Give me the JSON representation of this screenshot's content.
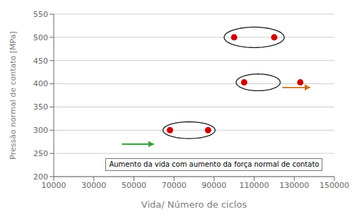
{
  "chart_data": {
    "type": "scatter",
    "x_label": "Vida/ Número de ciclos",
    "y_label": "Pressão normal de contato [MPa]",
    "xlim": [
      10000,
      150000
    ],
    "ylim": [
      200,
      550
    ],
    "xticks": [
      10000,
      30000,
      50000,
      70000,
      90000,
      110000,
      130000,
      150000
    ],
    "yticks": [
      200,
      250,
      300,
      350,
      400,
      450,
      500,
      550
    ],
    "grid": "y",
    "x": [
      68000,
      87000,
      100000,
      120000,
      105000,
      133000
    ],
    "values": [
      300,
      300,
      500,
      500,
      403,
      403
    ],
    "color": "#cc0000",
    "ellipses": [
      {
        "cx": 77500,
        "cy": 300,
        "rx": 13000,
        "ry": 18,
        "color": "#1a1a1a"
      },
      {
        "cx": 110000,
        "cy": 500,
        "rx": 15000,
        "ry": 22,
        "color": "#1a1a1a"
      },
      {
        "cx": 112000,
        "cy": 403,
        "rx": 11000,
        "ry": 18,
        "color": "#1a1a1a"
      }
    ],
    "arrows": [
      {
        "x_start": 44000,
        "x_end": 60000,
        "y": 270,
        "color": "#3a9e3a"
      },
      {
        "x_start": 124000,
        "x_end": 138000,
        "y": 392,
        "color": "#c87020"
      }
    ],
    "annotation": "Aumento da vida com aumento da força normal de contato"
  }
}
